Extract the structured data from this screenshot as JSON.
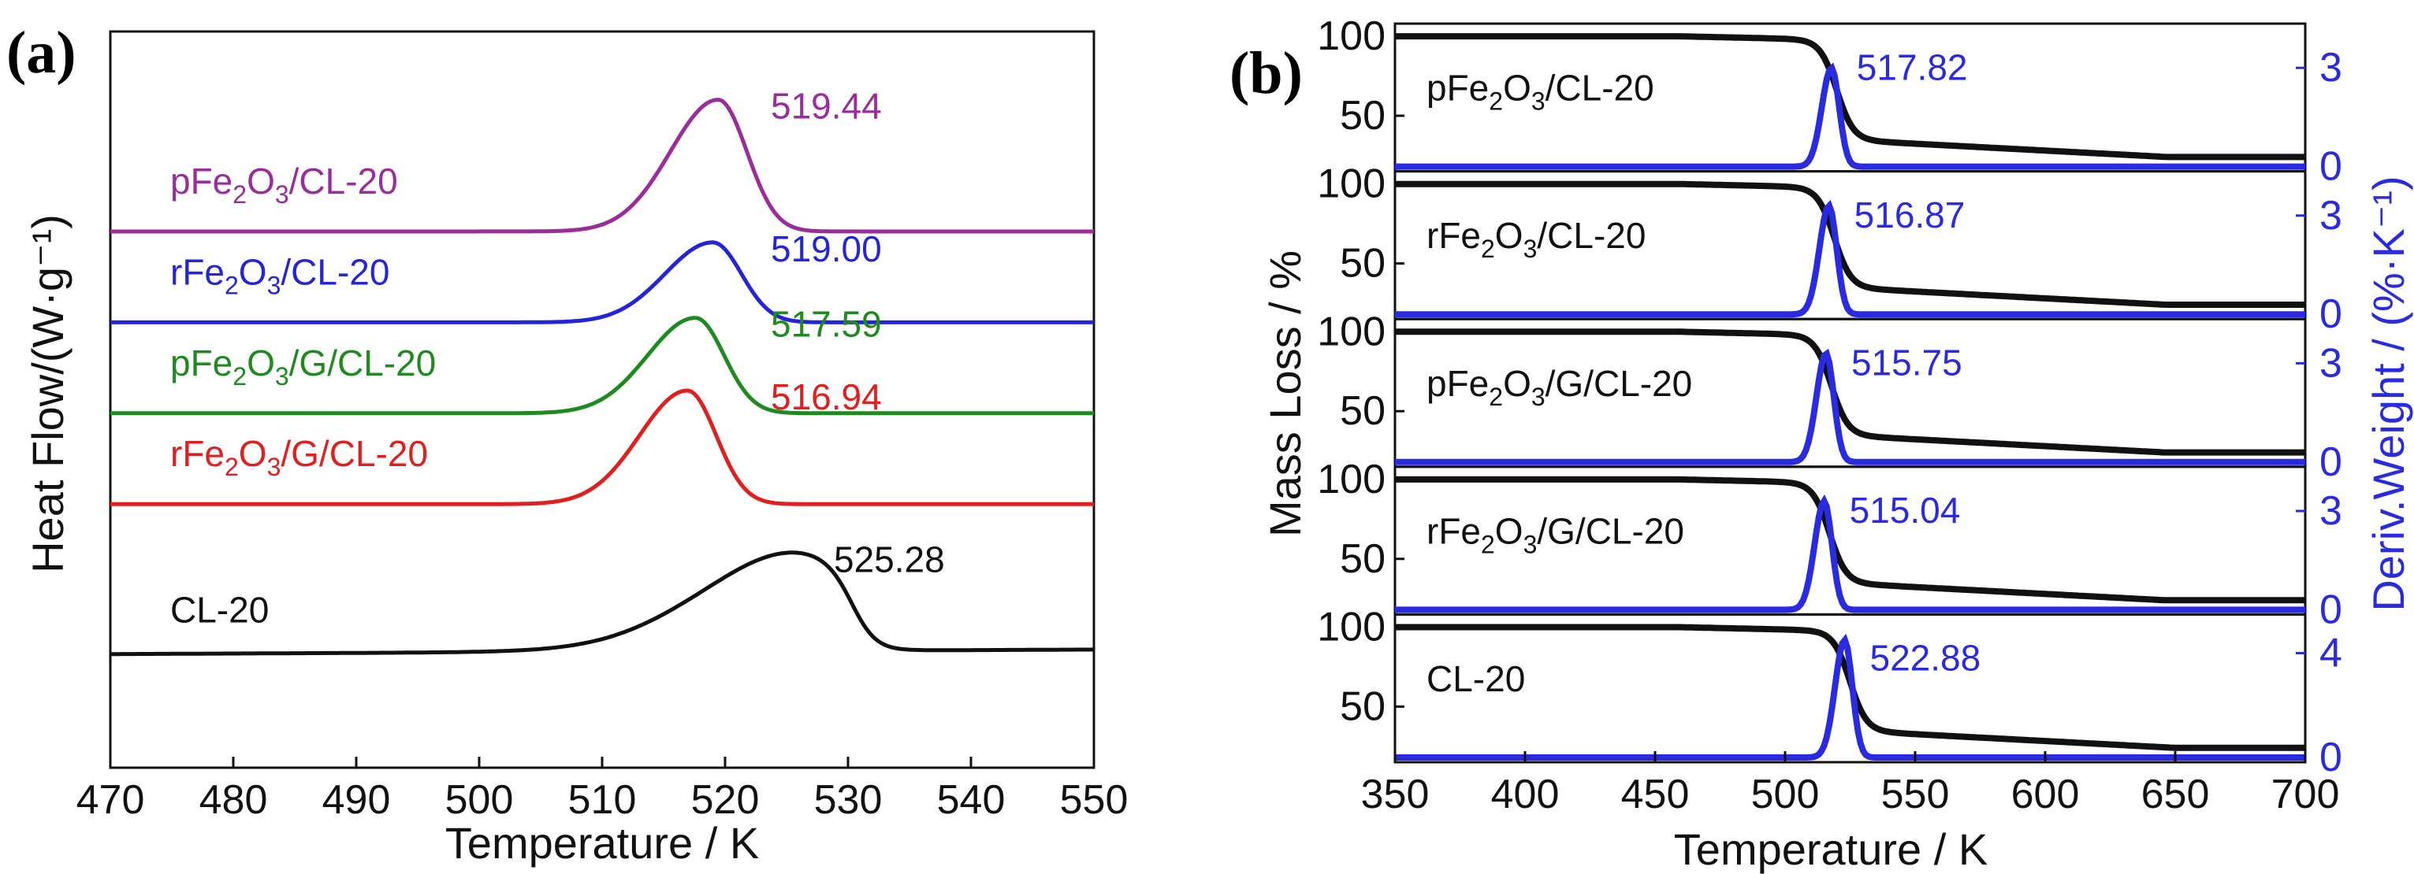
{
  "chart_data": [
    {
      "panel": "(a)",
      "type": "line",
      "xlabel": "Temperature / K",
      "ylabel": "Heat Flow/(W·g⁻¹)",
      "xlim": [
        470,
        550
      ],
      "x_ticks": [
        "470",
        "480",
        "490",
        "500",
        "510",
        "520",
        "530",
        "540",
        "550"
      ],
      "y_ticks": [],
      "series": [
        {
          "name": "pFe2O3/CL-20",
          "label_main": "pFe",
          "label_sub1": "2",
          "label_mid": "O",
          "label_sub2": "3",
          "label_end": "/CL-20",
          "color": "#9b2c9b",
          "peak_label": "519.44",
          "peak_x": 519.44,
          "baseline": 4.0,
          "peak_height": 1.45,
          "shape": "narrow"
        },
        {
          "name": "rFe2O3/CL-20",
          "label_main": "rFe",
          "label_sub1": "2",
          "label_mid": "O",
          "label_sub2": "3",
          "label_end": "/CL-20",
          "color": "#2525d8",
          "peak_label": "519.00",
          "peak_x": 519.0,
          "baseline": 3.0,
          "peak_height": 0.88,
          "shape": "narrow"
        },
        {
          "name": "pFe2O3/G/CL-20",
          "label_main": "pFe",
          "label_sub1": "2",
          "label_mid": "O",
          "label_sub2": "3",
          "label_end": "/G/CL-20",
          "color": "#1f8a1f",
          "peak_label": "517.59",
          "peak_x": 517.59,
          "baseline": 2.0,
          "peak_height": 1.05,
          "shape": "narrow"
        },
        {
          "name": "rFe2O3/G/CL-20",
          "label_main": "rFe",
          "label_sub1": "2",
          "label_mid": "O",
          "label_sub2": "3",
          "label_end": "/G/CL-20",
          "color": "#e01f1f",
          "peak_label": "516.94",
          "peak_x": 516.94,
          "baseline": 1.0,
          "peak_height": 1.25,
          "shape": "narrow"
        },
        {
          "name": "CL-20",
          "label_main": "CL-20",
          "label_sub1": "",
          "label_mid": "",
          "label_sub2": "",
          "label_end": "",
          "color": "#111111",
          "peak_label": "525.28",
          "peak_x": 525.28,
          "baseline": -0.65,
          "peak_height": 1.12,
          "shape": "broad"
        }
      ]
    },
    {
      "panel": "(b)",
      "type": "line",
      "xlabel": "Temperature / K",
      "ylabel_left": "Mass Loss / %",
      "ylabel_right": "Deriv.Weight / (%·K⁻¹)",
      "xlim": [
        350,
        700
      ],
      "x_ticks": [
        "350",
        "400",
        "450",
        "500",
        "550",
        "600",
        "650",
        "700"
      ],
      "subplots": [
        {
          "name": "pFe2O3/CL-20",
          "label_main": "pFe",
          "label_end": "/CL-20",
          "peak_label": "517.82",
          "peak_x": 517.82,
          "y_ticks_left": [
            "100",
            "50"
          ],
          "y_ticks_right": [
            "3",
            "0"
          ],
          "right_max": 4.2,
          "dtg_peak": 3.0
        },
        {
          "name": "rFe2O3/CL-20",
          "label_main": "rFe",
          "label_end": "/CL-20",
          "peak_label": "516.87",
          "peak_x": 516.87,
          "y_ticks_left": [
            "100",
            "50"
          ],
          "y_ticks_right": [
            "3",
            "0"
          ],
          "right_max": 4.2,
          "dtg_peak": 3.3
        },
        {
          "name": "pFe2O3/G/CL-20",
          "label_main": "pFe",
          "label_end": "/G/CL-20",
          "peak_label": "515.75",
          "peak_x": 515.75,
          "y_ticks_left": [
            "100",
            "50"
          ],
          "y_ticks_right": [
            "3",
            "0"
          ],
          "right_max": 4.2,
          "dtg_peak": 3.3
        },
        {
          "name": "rFe2O3/G/CL-20",
          "label_main": "rFe",
          "label_end": "/G/CL-20",
          "peak_label": "515.04",
          "peak_x": 515.04,
          "y_ticks_left": [
            "100",
            "50"
          ],
          "y_ticks_right": [
            "3",
            "0"
          ],
          "right_max": 4.2,
          "dtg_peak": 3.3
        },
        {
          "name": "CL-20",
          "label_main": "CL-20",
          "label_end": "",
          "peak_label": "522.88",
          "peak_x": 522.88,
          "y_ticks_left": [
            "100",
            "50"
          ],
          "y_ticks_right": [
            "4",
            "0"
          ],
          "right_max": 5.3,
          "dtg_peak": 4.5
        }
      ],
      "tga_color": "#111111",
      "dtg_color": "#2a2ae0"
    }
  ]
}
